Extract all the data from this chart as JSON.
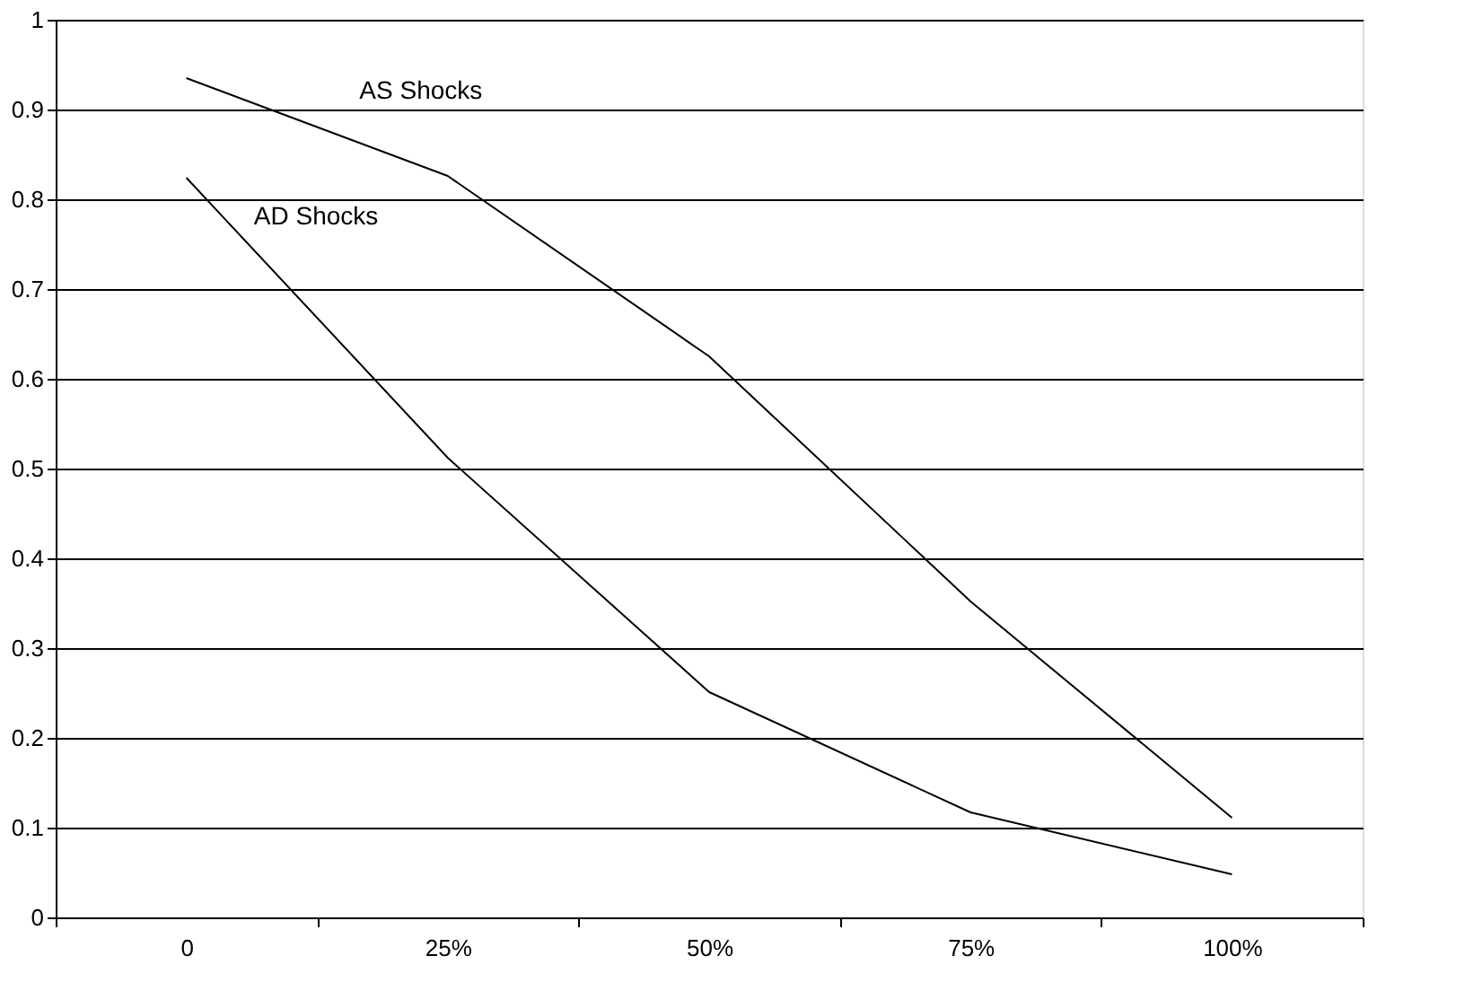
{
  "chart_data": {
    "type": "line",
    "categories": [
      "0",
      "25%",
      "50%",
      "75%",
      "100%"
    ],
    "series": [
      {
        "name": "AS Shocks",
        "color": "#000000",
        "values": [
          0.935,
          0.826,
          0.625,
          0.352,
          0.111
        ]
      },
      {
        "name": "AD Shocks",
        "color": "#000000",
        "values": [
          0.824,
          0.512,
          0.251,
          0.117,
          0.048
        ]
      }
    ],
    "ylim": [
      0,
      1
    ],
    "yticks": [
      0,
      0.1,
      0.2,
      0.3,
      0.4,
      0.5,
      0.6,
      0.7,
      0.8,
      0.9,
      1
    ],
    "grid": "y",
    "legend": false,
    "marker": "none",
    "line_style": "solid"
  }
}
